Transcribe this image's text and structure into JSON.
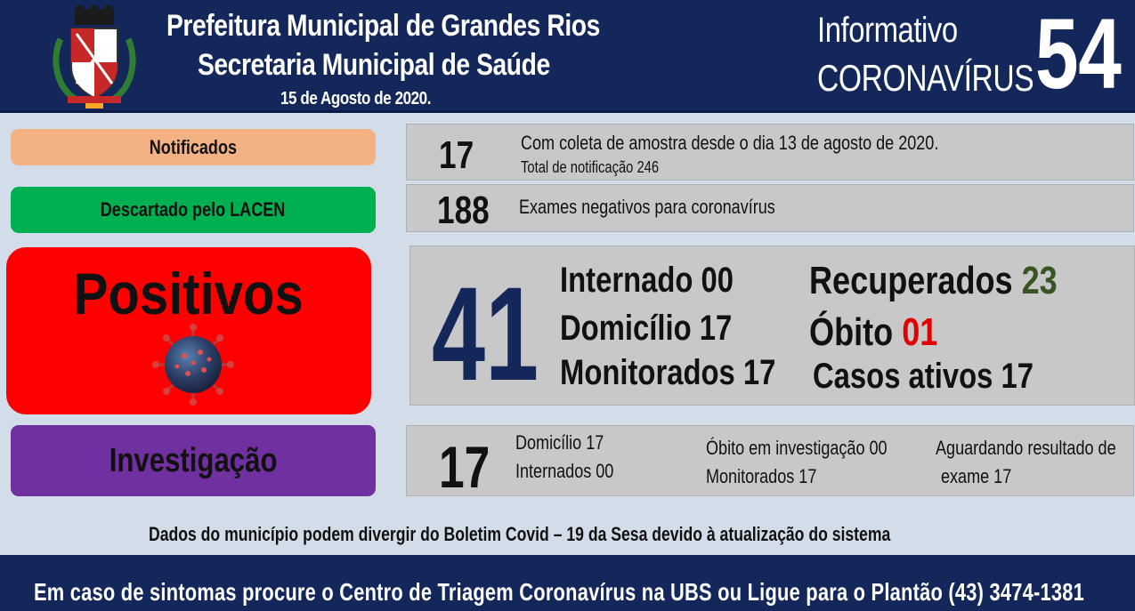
{
  "header": {
    "line1": "Prefeitura Municipal de Grandes Rios",
    "line2": "Secretaria Municipal de Saúde",
    "date": "15 de Agosto de 2020.",
    "info_label": "Informativo",
    "corona_label": "CORONAVÍRUS",
    "edition_number": "54"
  },
  "notificados": {
    "label": "Notificados",
    "value": "17",
    "line1": "Com coleta de amostra desde o dia 13 de agosto de 2020.",
    "line2": "Total de notificação 246"
  },
  "descartados": {
    "label": "Descartado pelo LACEN",
    "value": "188",
    "text": "Exames negativos para coronavírus"
  },
  "positivos": {
    "label": "Positivos",
    "total": "41",
    "internado": "Internado 00",
    "domicilio": "Domicílio 17",
    "monitorados": "Monitorados 17",
    "recuperados_label": "Recuperados",
    "recuperados_value": "23",
    "obito_label": "Óbito",
    "obito_value": "01",
    "casos_ativos": "Casos ativos 17"
  },
  "investigacao": {
    "label": "Investigação",
    "value": "17",
    "domicilio": "Domicílio 17",
    "internados": "Internados 00",
    "obito": "Óbito em investigação 00",
    "monitorados": "Monitorados 17",
    "aguardando_1": "Aguardando resultado de",
    "aguardando_2": "exame 17"
  },
  "disclaimer": "Dados do município podem divergir do Boletim Covid – 19 da Sesa devido à atualização do sistema",
  "footer": "Em caso de sintomas procure o Centro de Triagem Coronavírus na UBS ou Ligue para o Plantão (43) 3474-1381",
  "colors": {
    "header_bg": "#13275b",
    "notificados": "#f4b183",
    "descartados": "#00b050",
    "positivos": "#ff0000",
    "investigacao": "#7030a0",
    "recuperados": "#375623",
    "obito": "#e00000"
  }
}
